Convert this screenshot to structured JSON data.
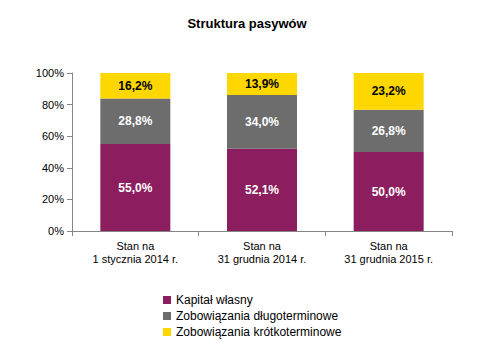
{
  "chart_data": {
    "type": "bar",
    "title": "Struktura pasywów",
    "categories": [
      "Stan na\n1 stycznia 2014 r.",
      "Stan na\n31 grudnia 2014 r.",
      "Stan na\n31 grudnia 2015 r."
    ],
    "series": [
      {
        "name": "Kapitał własny",
        "color": "#8c1d5f",
        "values": [
          55.0,
          52.1,
          50.0
        ],
        "value_labels": [
          "55,0%",
          "52,1%",
          "50,0%"
        ]
      },
      {
        "name": "Zobowiązania długoterminowe",
        "color": "#6d6d6d",
        "values": [
          28.8,
          34.0,
          26.8
        ],
        "value_labels": [
          "28,8%",
          "34,0%",
          "26,8%"
        ]
      },
      {
        "name": "Zobowiązania krótkoterminowe",
        "color": "#ffd700",
        "values": [
          16.2,
          13.9,
          23.2
        ],
        "value_labels": [
          "16,2%",
          "13,9%",
          "23,2%"
        ]
      }
    ],
    "ylim": [
      0,
      100
    ],
    "yticks": [
      {
        "value": 0,
        "label": "0%"
      },
      {
        "value": 20,
        "label": "20%"
      },
      {
        "value": 40,
        "label": "40%"
      },
      {
        "value": 60,
        "label": "60%"
      },
      {
        "value": 80,
        "label": "80%"
      },
      {
        "value": 100,
        "label": "100%"
      }
    ],
    "stacked": true,
    "data_labels": true,
    "grid": false,
    "legend": "bottom"
  }
}
